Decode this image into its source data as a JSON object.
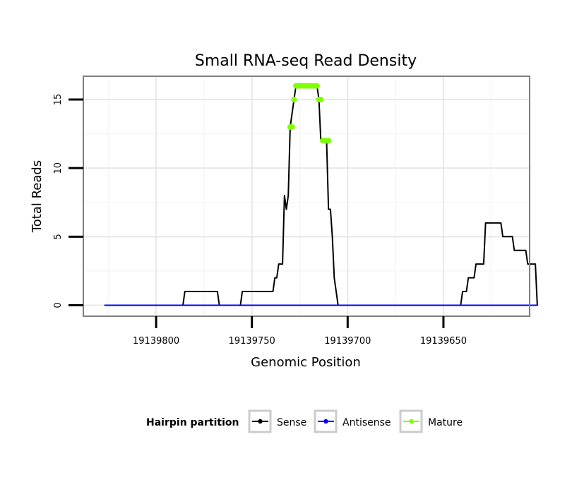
{
  "chart_data": {
    "type": "line",
    "title": "Small RNA-seq Read Density",
    "xlabel": "Genomic Position",
    "ylabel": "Total Reads",
    "xlim": [
      19139838,
      19139605
    ],
    "ylim": [
      -0.8,
      16.7
    ],
    "x_reversed": true,
    "x_ticks": [
      19139800,
      19139750,
      19139700,
      19139650
    ],
    "x_tick_labels": [
      "19139800",
      "19139750",
      "19139700",
      "19139650"
    ],
    "y_ticks": [
      0,
      5,
      10,
      15
    ],
    "y_tick_labels": [
      "0",
      "5",
      "10",
      "15"
    ],
    "grid": true,
    "legend": {
      "title": "Hairpin partition",
      "position": "bottom",
      "entries": [
        {
          "name": "Sense",
          "color": "#000000"
        },
        {
          "name": "Antisense",
          "color": "#0000ff"
        },
        {
          "name": "Mature",
          "color": "#7fff00"
        }
      ]
    },
    "series": [
      {
        "name": "Sense",
        "color": "#000000",
        "points": [
          [
            19139827,
            0
          ],
          [
            19139786,
            0
          ],
          [
            19139785,
            1
          ],
          [
            19139768,
            1
          ],
          [
            19139767,
            0
          ],
          [
            19139756,
            0
          ],
          [
            19139755,
            1
          ],
          [
            19139739,
            1
          ],
          [
            19139738,
            2
          ],
          [
            19139737,
            2
          ],
          [
            19139736,
            3
          ],
          [
            19139734,
            3
          ],
          [
            19139733,
            8
          ],
          [
            19139732,
            7
          ],
          [
            19139731,
            8
          ],
          [
            19139730,
            13
          ],
          [
            19139728,
            15
          ],
          [
            19139727,
            16
          ],
          [
            19139716,
            16
          ],
          [
            19139715,
            15
          ],
          [
            19139714,
            12
          ],
          [
            19139711,
            12
          ],
          [
            19139710,
            7
          ],
          [
            19139709,
            7
          ],
          [
            19139708,
            5
          ],
          [
            19139707,
            2
          ],
          [
            19139705,
            0
          ],
          [
            19139641,
            0
          ],
          [
            19139640,
            1
          ],
          [
            19139638,
            1
          ],
          [
            19139637,
            2
          ],
          [
            19139634,
            2
          ],
          [
            19139633,
            3
          ],
          [
            19139629,
            3
          ],
          [
            19139628,
            6
          ],
          [
            19139620,
            6
          ],
          [
            19139619,
            5
          ],
          [
            19139614,
            5
          ],
          [
            19139613,
            4
          ],
          [
            19139607,
            4
          ],
          [
            19139606,
            3
          ],
          [
            19139602,
            3
          ],
          [
            19139601,
            0
          ],
          [
            19139615,
            0
          ]
        ]
      },
      {
        "name": "Antisense",
        "color": "#0000ff",
        "points": [
          [
            19139827,
            0
          ],
          [
            19139601,
            0
          ]
        ]
      },
      {
        "name": "Mature",
        "color": "#7fff00",
        "points": [
          [
            19139730,
            13
          ],
          [
            19139729,
            13
          ],
          [
            19139728,
            15
          ],
          [
            19139727,
            16
          ],
          [
            19139726,
            16
          ],
          [
            19139725,
            16
          ],
          [
            19139724,
            16
          ],
          [
            19139723,
            16
          ],
          [
            19139722,
            16
          ],
          [
            19139721,
            16
          ],
          [
            19139720,
            16
          ],
          [
            19139719,
            16
          ],
          [
            19139718,
            16
          ],
          [
            19139717,
            16
          ],
          [
            19139716,
            16
          ],
          [
            19139715,
            15
          ],
          [
            19139714,
            15
          ],
          [
            19139713,
            12
          ],
          [
            19139712,
            12
          ],
          [
            19139711,
            12
          ],
          [
            19139710,
            12
          ]
        ]
      }
    ]
  }
}
